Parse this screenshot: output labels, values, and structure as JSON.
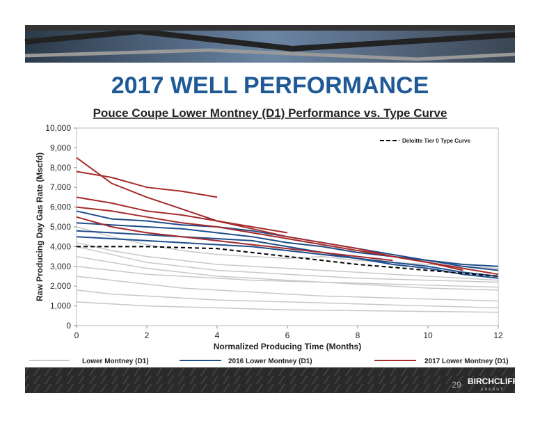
{
  "slide_title": "2017 WELL PERFORMANCE",
  "page_number": "29",
  "logo": {
    "name": "BIRCHCLIFF",
    "tagline": "ENERGY"
  },
  "chart_data": {
    "type": "line",
    "title": "Pouce Coupe Lower Montney (D1) Performance vs. Type Curve",
    "x_label": "Normalized Producing Time (Months)",
    "y_label": "Raw Producing Day Gas Rate (Mscfd)",
    "xlim": [
      0,
      12
    ],
    "xticks": [
      0,
      2,
      4,
      6,
      8,
      10,
      12
    ],
    "ylim": [
      0,
      10000
    ],
    "yticks": [
      0,
      {
        "value": 1000,
        "label": "1,000"
      },
      {
        "value": 2000,
        "label": "2,000"
      },
      {
        "value": 3000,
        "label": "3,000"
      },
      {
        "value": 4000,
        "label": "4,000"
      },
      {
        "value": 5000,
        "label": "5,000"
      },
      {
        "value": 6000,
        "label": "6,000"
      },
      {
        "value": 7000,
        "label": "7,000"
      },
      {
        "value": 8000,
        "label": "8,000"
      },
      {
        "value": 9000,
        "label": "9,000"
      },
      {
        "value": 10000,
        "label": "10,000"
      }
    ],
    "x": [
      0,
      1,
      2,
      3,
      4,
      5,
      6,
      7,
      8,
      9,
      10,
      11,
      12
    ],
    "series": [
      {
        "name": "Lower Montney (D1)",
        "color": "#c8c8c8",
        "width": 1.5,
        "legend": "bottom",
        "wells": [
          {
            "values": [
              3500,
              3200,
              2900,
              2700,
              2500,
              2400,
              2300,
              2200,
              2100,
              2000,
              1900,
              1850,
              1800
            ]
          },
          {
            "values": [
              2500,
              2300,
              2100,
              1900,
              1800,
              1700,
              1600,
              1500,
              1450,
              1400,
              1350,
              1300,
              1250
            ]
          },
          {
            "values": [
              4200,
              3800,
              3500,
              3300,
              3100,
              3000,
              2900,
              2800,
              2700,
              2600,
              2500,
              2400,
              2300
            ]
          },
          {
            "values": [
              1800,
              1600,
              1500,
              1400,
              1300,
              1250,
              1200,
              1150,
              1100,
              1050,
              1000,
              950,
              900
            ]
          },
          {
            "values": [
              5000,
              4500,
              4100,
              3800,
              3600,
              3500,
              3400,
              3500,
              3300,
              3200,
              3100,
              3000,
              2900
            ]
          },
          {
            "values": [
              3000,
              2800,
              2600,
              2500,
              2400,
              2300,
              2250,
              2200,
              2150,
              2100,
              2050,
              2000,
              1950
            ]
          },
          {
            "values": [
              1200,
              1100,
              1000,
              950,
              900,
              850,
              800,
              780,
              760,
              740,
              720,
              700,
              680
            ]
          },
          {
            "values": [
              4000,
              3600,
              3200,
              3000,
              2800,
              2700,
              2600,
              2500,
              2400,
              2350,
              2300,
              2250,
              2200
            ]
          }
        ]
      },
      {
        "name": "2016 Lower Montney (D1)",
        "color": "#1f4e8c",
        "width": 2,
        "legend": "bottom",
        "wells": [
          {
            "values": [
              5200,
              5100,
              5000,
              4900,
              4700,
              4500,
              4200,
              4000,
              3700,
              3500,
              3300,
              3100,
              3000
            ]
          },
          {
            "values": [
              5800,
              5400,
              5300,
              5100,
              5000,
              4800,
              4500,
              4200,
              3900,
              3600,
              3300,
              3000,
              2800
            ]
          },
          {
            "values": [
              4500,
              4400,
              4300,
              4200,
              4100,
              4000,
              3800,
              3600,
              3400,
              3200,
              3000,
              2700,
              2500
            ]
          },
          {
            "values": [
              4800,
              4700,
              4600,
              4500,
              4400,
              4300,
              4000,
              3700,
              3400,
              3100,
              2900,
              2600,
              2400
            ]
          }
        ]
      },
      {
        "name": "2017 Lower Montney (D1)",
        "color": "#a52a2a",
        "width": 2,
        "legend": "bottom",
        "wells": [
          {
            "values": [
              7800,
              7500,
              7000,
              6800,
              6500,
              null,
              null,
              null,
              null,
              null,
              null,
              null,
              null
            ]
          },
          {
            "values": [
              6500,
              6200,
              5800,
              5600,
              5300,
              5000,
              4700,
              null,
              null,
              null,
              null,
              null,
              null
            ]
          },
          {
            "values": [
              6000,
              5800,
              5500,
              5200,
              5000,
              4700,
              4400,
              4100,
              3800,
              3500,
              3200,
              2900,
              2600
            ]
          },
          {
            "values": [
              8500,
              7200,
              6500,
              5900,
              5300,
              4900,
              4500,
              4200,
              3900,
              3500,
              3200,
              2800,
              null
            ]
          },
          {
            "values": [
              5500,
              5000,
              4700,
              4500,
              4300,
              4100,
              3900,
              3700,
              3500,
              3300,
              null,
              null,
              null
            ]
          }
        ]
      },
      {
        "name": "Deloitte Tier 0 Type Curve",
        "color": "#000000",
        "width": 2,
        "dashed": true,
        "legend": "inset",
        "wells": [
          {
            "values": [
              4000,
              4000,
              4000,
              3950,
              3900,
              3700,
              3500,
              3300,
              3100,
              2950,
              2800,
              2650,
              2500
            ]
          }
        ]
      }
    ]
  }
}
